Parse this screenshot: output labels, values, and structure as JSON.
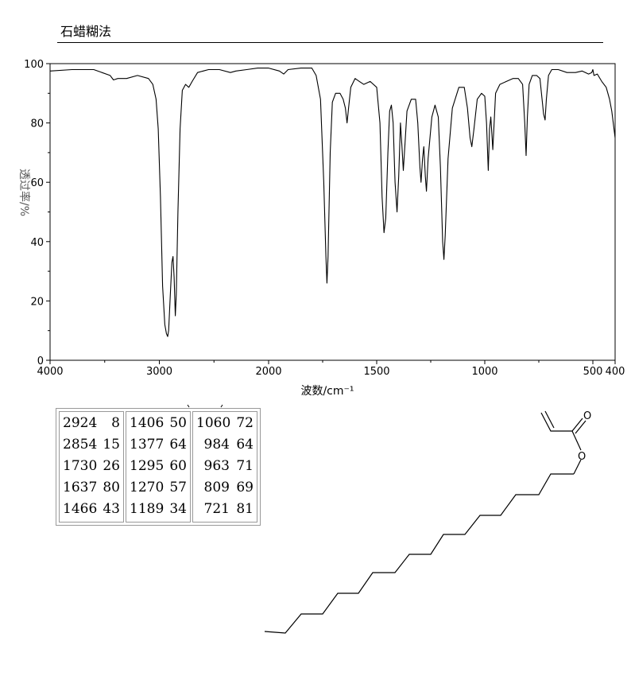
{
  "header": {
    "method": "石蜡糊法"
  },
  "chart_data": {
    "type": "line",
    "title": "",
    "xlabel": "波数/cm⁻¹",
    "ylabel": "透过率/%",
    "xlim": [
      4000,
      400
    ],
    "ylim": [
      0,
      100
    ],
    "x_ticks": [
      4000,
      3000,
      2000,
      1500,
      1000,
      500,
      400
    ],
    "x_tick_labels": [
      "4000",
      "3000",
      "2000",
      "1500",
      "1000",
      "500",
      "400"
    ],
    "y_ticks": [
      0,
      20,
      40,
      60,
      80,
      100
    ],
    "y_tick_labels": [
      "0",
      "20",
      "40",
      "60",
      "80",
      "100"
    ],
    "grid": false,
    "series": [
      {
        "points": [
          [
            4000,
            97.5
          ],
          [
            3800,
            98.0
          ],
          [
            3600,
            98.0
          ],
          [
            3450,
            96.0
          ],
          [
            3420,
            94.5
          ],
          [
            3380,
            95.0
          ],
          [
            3300,
            95.0
          ],
          [
            3200,
            96.0
          ],
          [
            3100,
            95.0
          ],
          [
            3060,
            93.0
          ],
          [
            3030,
            88.0
          ],
          [
            3010,
            78.0
          ],
          [
            2990,
            55.0
          ],
          [
            2970,
            25.0
          ],
          [
            2950,
            12.0
          ],
          [
            2935,
            9.0
          ],
          [
            2924,
            8.0
          ],
          [
            2915,
            10.0
          ],
          [
            2900,
            22.0
          ],
          [
            2885,
            33.0
          ],
          [
            2875,
            35.0
          ],
          [
            2865,
            28.0
          ],
          [
            2854,
            15.0
          ],
          [
            2845,
            22.0
          ],
          [
            2830,
            50.0
          ],
          [
            2810,
            78.0
          ],
          [
            2790,
            91.0
          ],
          [
            2760,
            93.0
          ],
          [
            2730,
            92.0
          ],
          [
            2700,
            94.0
          ],
          [
            2650,
            97.0
          ],
          [
            2550,
            98.0
          ],
          [
            2450,
            98.0
          ],
          [
            2350,
            97.0
          ],
          [
            2300,
            97.5
          ],
          [
            2200,
            98.0
          ],
          [
            2100,
            98.5
          ],
          [
            2000,
            98.5
          ],
          [
            1950,
            97.5
          ],
          [
            1930,
            96.5
          ],
          [
            1910,
            98.0
          ],
          [
            1850,
            98.5
          ],
          [
            1800,
            98.5
          ],
          [
            1780,
            96.0
          ],
          [
            1760,
            88.0
          ],
          [
            1745,
            60.0
          ],
          [
            1735,
            35.0
          ],
          [
            1730,
            26.0
          ],
          [
            1725,
            35.0
          ],
          [
            1715,
            70.0
          ],
          [
            1705,
            87.0
          ],
          [
            1690,
            90.0
          ],
          [
            1670,
            90.0
          ],
          [
            1655,
            88.0
          ],
          [
            1645,
            85.0
          ],
          [
            1637,
            80.0
          ],
          [
            1630,
            85.0
          ],
          [
            1620,
            92.0
          ],
          [
            1600,
            95.0
          ],
          [
            1580,
            94.0
          ],
          [
            1560,
            93.0
          ],
          [
            1530,
            94.0
          ],
          [
            1500,
            92.0
          ],
          [
            1485,
            80.0
          ],
          [
            1475,
            55.0
          ],
          [
            1466,
            43.0
          ],
          [
            1458,
            48.0
          ],
          [
            1448,
            70.0
          ],
          [
            1440,
            84.0
          ],
          [
            1432,
            86.0
          ],
          [
            1424,
            80.0
          ],
          [
            1415,
            60.0
          ],
          [
            1406,
            50.0
          ],
          [
            1398,
            62.0
          ],
          [
            1390,
            80.0
          ],
          [
            1383,
            72.0
          ],
          [
            1377,
            64.0
          ],
          [
            1370,
            72.0
          ],
          [
            1360,
            84.0
          ],
          [
            1340,
            88.0
          ],
          [
            1320,
            88.0
          ],
          [
            1310,
            80.0
          ],
          [
            1300,
            65.0
          ],
          [
            1295,
            60.0
          ],
          [
            1288,
            68.0
          ],
          [
            1282,
            72.0
          ],
          [
            1275,
            62.0
          ],
          [
            1270,
            57.0
          ],
          [
            1262,
            68.0
          ],
          [
            1245,
            82.0
          ],
          [
            1230,
            86.0
          ],
          [
            1215,
            82.0
          ],
          [
            1205,
            65.0
          ],
          [
            1195,
            40.0
          ],
          [
            1189,
            34.0
          ],
          [
            1183,
            42.0
          ],
          [
            1170,
            68.0
          ],
          [
            1150,
            85.0
          ],
          [
            1120,
            92.0
          ],
          [
            1095,
            92.0
          ],
          [
            1080,
            85.0
          ],
          [
            1068,
            75.0
          ],
          [
            1060,
            72.0
          ],
          [
            1050,
            78.0
          ],
          [
            1035,
            88.0
          ],
          [
            1015,
            90.0
          ],
          [
            1000,
            89.0
          ],
          [
            992,
            80.0
          ],
          [
            984,
            64.0
          ],
          [
            978,
            78.0
          ],
          [
            972,
            82.0
          ],
          [
            967,
            76.0
          ],
          [
            963,
            71.0
          ],
          [
            958,
            78.0
          ],
          [
            950,
            90.0
          ],
          [
            930,
            93.0
          ],
          [
            900,
            94.0
          ],
          [
            870,
            95.0
          ],
          [
            845,
            95.0
          ],
          [
            825,
            93.0
          ],
          [
            815,
            80.0
          ],
          [
            809,
            69.0
          ],
          [
            803,
            82.0
          ],
          [
            795,
            93.0
          ],
          [
            780,
            96.0
          ],
          [
            760,
            96.0
          ],
          [
            745,
            95.0
          ],
          [
            735,
            88.0
          ],
          [
            728,
            83.0
          ],
          [
            721,
            81.0
          ],
          [
            715,
            88.0
          ],
          [
            705,
            96.0
          ],
          [
            690,
            98.0
          ],
          [
            660,
            98.0
          ],
          [
            620,
            97.0
          ],
          [
            580,
            97.0
          ],
          [
            550,
            97.5
          ],
          [
            520,
            96.5
          ],
          [
            505,
            97.0
          ],
          [
            500,
            98.0
          ],
          [
            495,
            96.0
          ],
          [
            480,
            96.5
          ],
          [
            460,
            94.0
          ],
          [
            440,
            92.0
          ],
          [
            425,
            88.0
          ],
          [
            415,
            84.0
          ],
          [
            405,
            78.0
          ],
          [
            400,
            75.0
          ]
        ]
      }
    ],
    "peak_table": [
      {
        "wavenumber": "2924",
        "transmittance": "8"
      },
      {
        "wavenumber": "2854",
        "transmittance": "15"
      },
      {
        "wavenumber": "1730",
        "transmittance": "26"
      },
      {
        "wavenumber": "1637",
        "transmittance": "80"
      },
      {
        "wavenumber": "1466",
        "transmittance": "43"
      },
      {
        "wavenumber": "1406",
        "transmittance": "50"
      },
      {
        "wavenumber": "1377",
        "transmittance": "64"
      },
      {
        "wavenumber": "1295",
        "transmittance": "60"
      },
      {
        "wavenumber": "1270",
        "transmittance": "57"
      },
      {
        "wavenumber": "1189",
        "transmittance": "34"
      },
      {
        "wavenumber": "1060",
        "transmittance": "72"
      },
      {
        "wavenumber": "984",
        "transmittance": "64"
      },
      {
        "wavenumber": "963",
        "transmittance": "71"
      },
      {
        "wavenumber": "809",
        "transmittance": "69"
      },
      {
        "wavenumber": "721",
        "transmittance": "81"
      }
    ]
  },
  "structure": {
    "atom_label": "O"
  }
}
